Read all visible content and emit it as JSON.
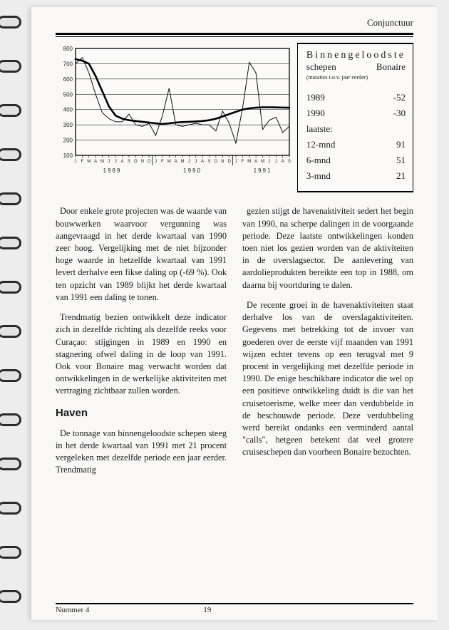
{
  "header": {
    "section": "Conjunctuur"
  },
  "chart": {
    "type": "line",
    "ylim": [
      100,
      800
    ],
    "ytick_step": 100,
    "yticks": [
      100,
      200,
      300,
      400,
      500,
      600,
      700,
      800
    ],
    "months": [
      "J",
      "F",
      "M",
      "A",
      "M",
      "J",
      "J",
      "A",
      "S",
      "O",
      "N",
      "D",
      "J",
      "F",
      "M",
      "A",
      "M",
      "J",
      "J",
      "A",
      "S",
      "O",
      "N",
      "D",
      "J",
      "F",
      "M",
      "A",
      "M",
      "J",
      "J",
      "A",
      "S"
    ],
    "years": [
      "1989",
      "1990",
      "1991"
    ],
    "background_color": "#fbfaf8",
    "grid_color": "#2a2a2a",
    "series_raw": {
      "color": "#111111",
      "width": 1,
      "values": [
        700,
        740,
        640,
        500,
        380,
        340,
        320,
        320,
        370,
        300,
        290,
        310,
        230,
        360,
        540,
        300,
        290,
        300,
        310,
        300,
        300,
        260,
        390,
        310,
        180,
        410,
        710,
        640,
        270,
        330,
        350,
        250,
        290
      ]
    },
    "series_trend": {
      "color": "#000000",
      "width": 2.6,
      "values": [
        730,
        720,
        700,
        620,
        520,
        420,
        360,
        340,
        330,
        325,
        320,
        315,
        310,
        305,
        310,
        315,
        318,
        320,
        322,
        325,
        330,
        340,
        355,
        370,
        385,
        400,
        408,
        412,
        415,
        415,
        414,
        413,
        412
      ]
    }
  },
  "info": {
    "title_line1": "Binnengeloodste",
    "sub_left": "schepen",
    "sub_right": "Bonaire",
    "note": "(mutaties t.o.v. jaar eerder)",
    "rows": [
      {
        "label": "1989",
        "value": "-52"
      },
      {
        "label": "1990",
        "value": "-30"
      },
      {
        "label": "laatste:",
        "value": ""
      },
      {
        "label": "12-mnd",
        "value": "91"
      },
      {
        "label": "6-mnd",
        "value": "51"
      },
      {
        "label": "3-mnd",
        "value": "21"
      }
    ]
  },
  "body": {
    "p1": "Door enkele grote projecten was de waarde van bouwwerken waarvoor vergunning was aangevraagd in het derde kwartaal van 1990 zeer hoog. Vergelijking met de niet bijzonder hoge waarde in hetzelfde kwartaal van 1991 levert derhalve een fikse daling op (-69 %). Ook ten opzicht van 1989 blijkt het derde kwartaal van 1991 een daling te tonen.",
    "p2": "Trendmatig bezien ontwikkelt deze indicator zich in dezelfde richting als dezelfde reeks voor Curaçao: stijgingen in 1989 en 1990 en stagnering ofwel daling in de loop van 1991. Ook voor Bonaire mag verwacht worden dat ontwikkelingen in de werkelijke aktiviteiten met vertraging zichtbaar zullen worden.",
    "h_haven": "Haven",
    "p3": "De tonnage van binnengeloodste schepen steeg in het derde kwartaal van 1991 met 21 procent vergeleken met dezelfde periode een jaar eerder. Trendmatig",
    "p4": "gezien stijgt de havenaktiviteit sedert het begin van 1990, na scherpe dalingen in de voorgaande periode. Deze laatste ontwikkelingen konden toen niet los gezien worden van de aktiviteiten in de overslagsector. De aanlevering van aardolieprodukten bereikte een top in 1988, om daarna bij voortduring te dalen.",
    "p5": "De recente groei in de havenaktiviteiten staat derhalve los van de overslagaktiviteiten. Gegevens met betrekking tot de invoer van goederen over de eerste vijf maanden van 1991 wijzen echter tevens op een terugval met 9 procent in vergelijking met dezelfde periode in 1990. De enige beschikbare indicator die wel op een positieve ontwikkeling duidt is die van het cruisetoerisme, welke meer dan verdubbelde in de beschouwde periode. Deze verdubbeling werd bereikt ondanks een verminderd aantal \"calls\", hetgeen betekent dat veel grotere cruiseschepen dan voorheen Bonaire bezochten."
  },
  "footer": {
    "issue": "Nummer 4",
    "page": "19"
  }
}
